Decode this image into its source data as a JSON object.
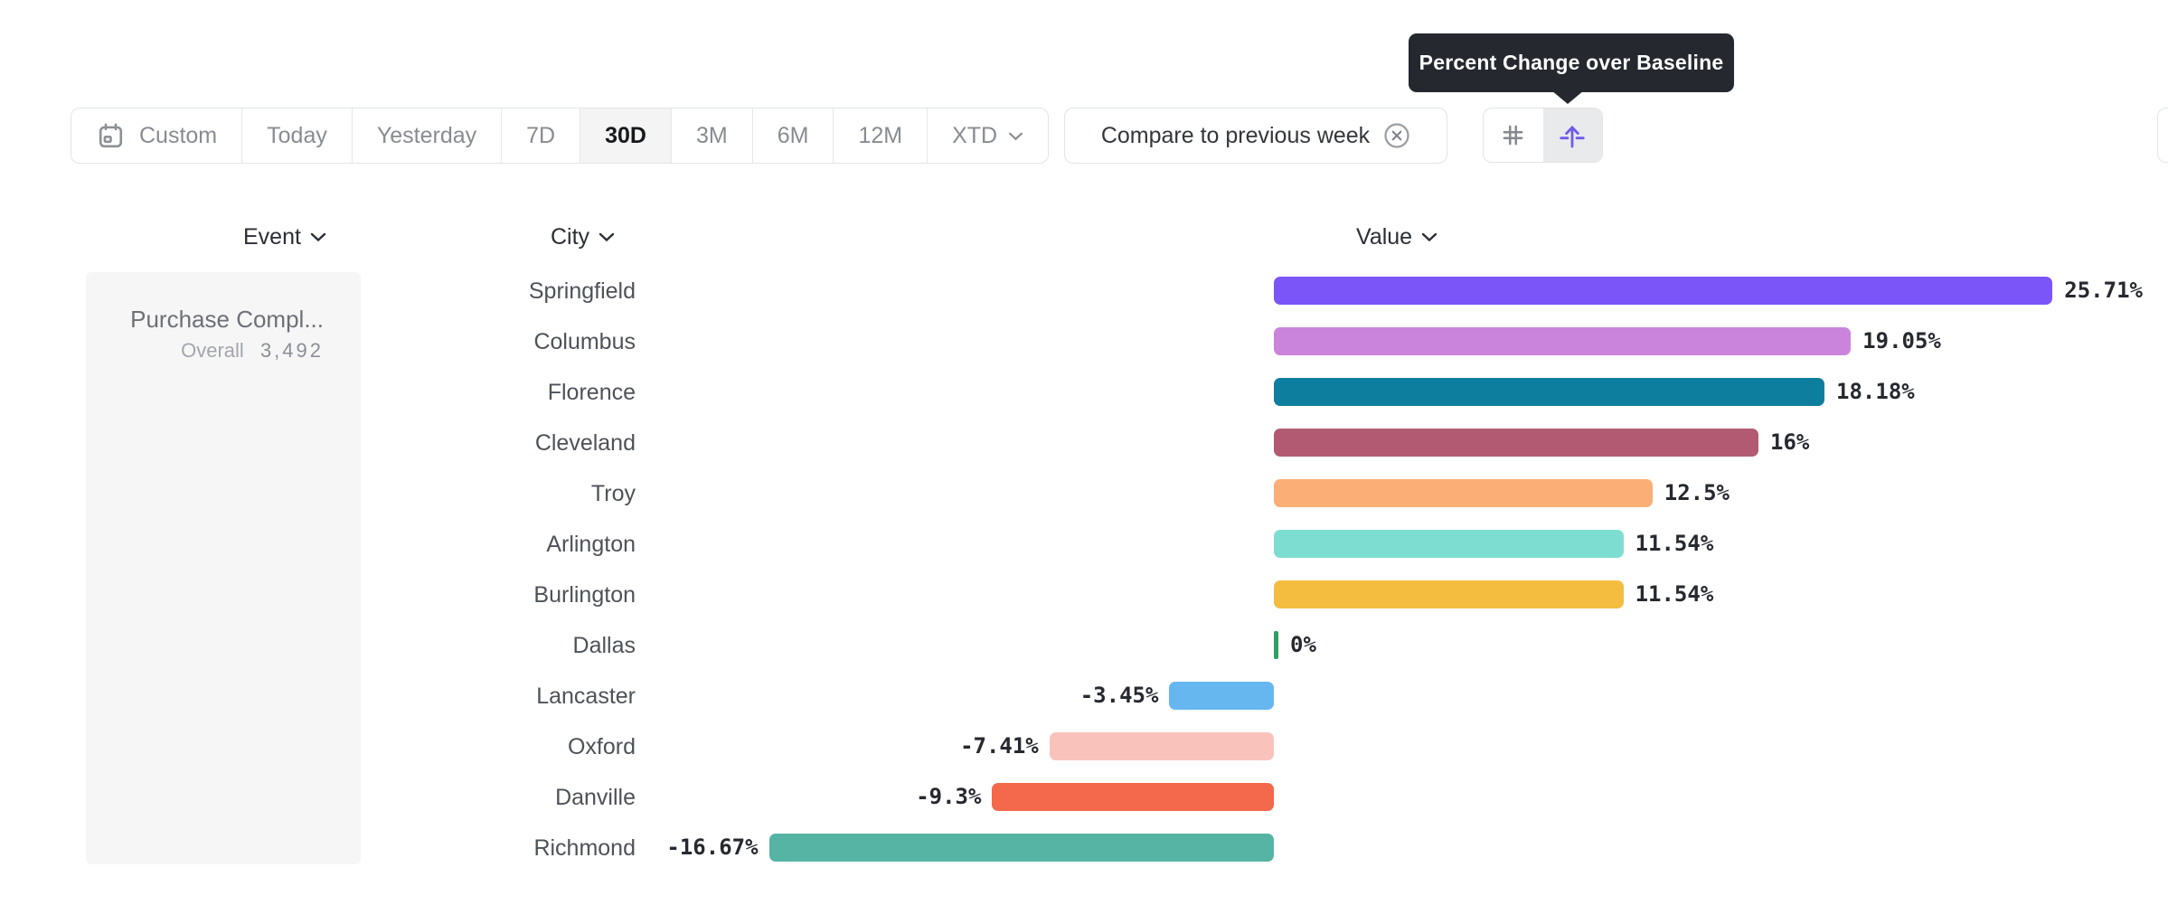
{
  "tooltip": {
    "text": "Percent Change over Baseline"
  },
  "toolbar": {
    "date_ranges": [
      {
        "label": "Custom",
        "icon": "calendar-icon"
      },
      {
        "label": "Today"
      },
      {
        "label": "Yesterday"
      },
      {
        "label": "7D"
      },
      {
        "label": "30D"
      },
      {
        "label": "3M"
      },
      {
        "label": "6M"
      },
      {
        "label": "12M"
      },
      {
        "label": "XTD",
        "chevron": true
      }
    ],
    "active_range": "30D",
    "compare": {
      "label": "Compare to previous week",
      "clear_icon": "close-circle-icon"
    },
    "view_toggles": [
      {
        "name": "grid-view",
        "icon": "hash-icon",
        "active": false
      },
      {
        "name": "percent-change-over-baseline",
        "icon": "baseline-arrow-icon",
        "active": true
      }
    ]
  },
  "columns": {
    "event": "Event",
    "city": "City",
    "value": "Value"
  },
  "event_card": {
    "name": "Purchase Compl...",
    "segment_label": "Overall",
    "count": "3,492"
  },
  "chart_data": {
    "type": "bar",
    "orientation": "horizontal",
    "title": "Percent Change over Baseline",
    "unit": "%",
    "baseline": 0,
    "categories": [
      "Springfield",
      "Columbus",
      "Florence",
      "Cleveland",
      "Troy",
      "Arlington",
      "Burlington",
      "Dallas",
      "Lancaster",
      "Oxford",
      "Danville",
      "Richmond"
    ],
    "values": [
      25.71,
      19.05,
      18.18,
      16,
      12.5,
      11.54,
      11.54,
      0,
      -3.45,
      -7.41,
      -9.3,
      -16.67
    ],
    "value_labels": [
      "25.71%",
      "19.05%",
      "18.18%",
      "16%",
      "12.5%",
      "11.54%",
      "11.54%",
      "0%",
      "-3.45%",
      "-7.41%",
      "-9.3%",
      "-16.67%"
    ],
    "bar_colors": [
      "#7b55f8",
      "#cb84dc",
      "#0e7e9e",
      "#b25a72",
      "#fbae76",
      "#7eddd1",
      "#f4bd40",
      "#2f9e60",
      "#66b6f0",
      "#f9c3bc",
      "#f4684b",
      "#56b4a5"
    ],
    "xlim": [
      -17,
      26
    ],
    "grid": false,
    "legend": false
  },
  "colors": {
    "accent": "#6f5aec",
    "tooltip_bg": "#26282f",
    "panel_bg": "#f6f6f7",
    "border": "#e3e4e6"
  }
}
